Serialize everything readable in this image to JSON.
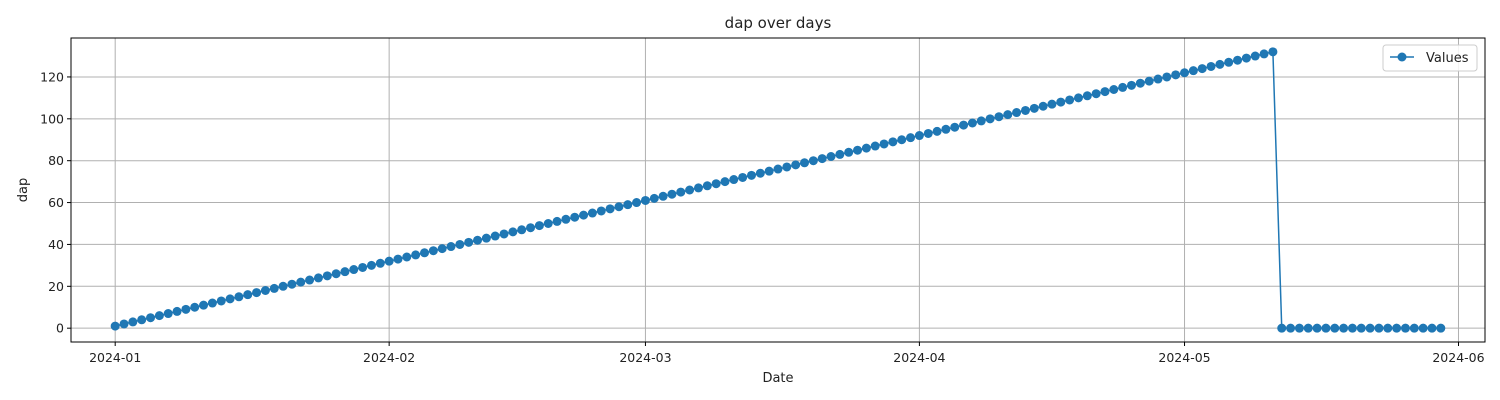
{
  "chart_data": {
    "type": "line",
    "title": "dap over days",
    "xlabel": "Date",
    "ylabel": "dap",
    "x_start": "2024-01-01",
    "x_end": "2024-05-30",
    "xlim": [
      "2023-12-27",
      "2024-06-04"
    ],
    "ylim": [
      -6.6,
      138.6
    ],
    "x_ticks": [
      "2024-01",
      "2024-02",
      "2024-03",
      "2024-04",
      "2024-05",
      "2024-06"
    ],
    "y_ticks": [
      0,
      20,
      40,
      60,
      80,
      100,
      120
    ],
    "grid": true,
    "legend_position": "top-right",
    "colors": {
      "series": "#1f77b4",
      "grid": "#b0b0b0",
      "axis": "#000000"
    },
    "series": [
      {
        "name": "Values",
        "values": [
          1,
          2,
          3,
          4,
          5,
          6,
          7,
          8,
          9,
          10,
          11,
          12,
          13,
          14,
          15,
          16,
          17,
          18,
          19,
          20,
          21,
          22,
          23,
          24,
          25,
          26,
          27,
          28,
          29,
          30,
          31,
          32,
          33,
          34,
          35,
          36,
          37,
          38,
          39,
          40,
          41,
          42,
          43,
          44,
          45,
          46,
          47,
          48,
          49,
          50,
          51,
          52,
          53,
          54,
          55,
          56,
          57,
          58,
          59,
          60,
          61,
          62,
          63,
          64,
          65,
          66,
          67,
          68,
          69,
          70,
          71,
          72,
          73,
          74,
          75,
          76,
          77,
          78,
          79,
          80,
          81,
          82,
          83,
          84,
          85,
          86,
          87,
          88,
          89,
          90,
          91,
          92,
          93,
          94,
          95,
          96,
          97,
          98,
          99,
          100,
          101,
          102,
          103,
          104,
          105,
          106,
          107,
          108,
          109,
          110,
          111,
          112,
          113,
          114,
          115,
          116,
          117,
          118,
          119,
          120,
          121,
          122,
          123,
          124,
          125,
          126,
          127,
          128,
          129,
          130,
          131,
          132,
          0,
          0,
          0,
          0,
          0,
          0,
          0,
          0,
          0,
          0,
          0,
          0,
          0,
          0,
          0,
          0,
          0,
          0,
          0
        ]
      }
    ]
  }
}
